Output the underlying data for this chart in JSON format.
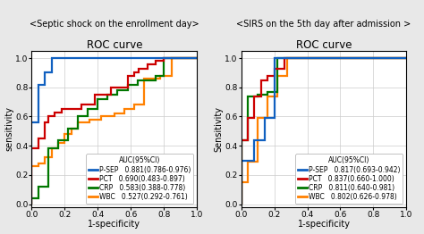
{
  "plot1": {
    "title_main": "<Septic shock on the enrollment day>",
    "title_sub": "ROC curve",
    "xlabel": "1-specificity",
    "ylabel": "sensitivity",
    "curves": {
      "P-SEP": {
        "color": "#1060C0",
        "auc": "0.881(0.786-0.976)",
        "x": [
          0.0,
          0.0,
          0.04,
          0.04,
          0.08,
          0.08,
          0.12,
          0.12,
          0.16,
          0.16,
          1.0
        ],
        "y": [
          0.0,
          0.56,
          0.56,
          0.82,
          0.82,
          0.9,
          0.9,
          1.0,
          1.0,
          1.0,
          1.0
        ]
      },
      "PCT": {
        "color": "#CC0000",
        "auc": "0.690(0.483-0.897)",
        "x": [
          0.0,
          0.0,
          0.04,
          0.04,
          0.08,
          0.08,
          0.1,
          0.1,
          0.14,
          0.14,
          0.18,
          0.18,
          0.3,
          0.3,
          0.38,
          0.38,
          0.48,
          0.48,
          0.58,
          0.58,
          0.62,
          0.62,
          0.65,
          0.65,
          0.7,
          0.7,
          0.75,
          0.75,
          0.8,
          0.8,
          1.0
        ],
        "y": [
          0.0,
          0.38,
          0.38,
          0.45,
          0.45,
          0.56,
          0.56,
          0.6,
          0.6,
          0.63,
          0.63,
          0.65,
          0.65,
          0.68,
          0.68,
          0.75,
          0.75,
          0.8,
          0.8,
          0.88,
          0.88,
          0.9,
          0.9,
          0.93,
          0.93,
          0.96,
          0.96,
          0.98,
          0.98,
          1.0,
          1.0
        ]
      },
      "CRP": {
        "color": "#007700",
        "auc": "0.583(0.388-0.778)",
        "x": [
          0.0,
          0.0,
          0.04,
          0.04,
          0.1,
          0.1,
          0.16,
          0.16,
          0.22,
          0.22,
          0.28,
          0.28,
          0.34,
          0.34,
          0.4,
          0.4,
          0.46,
          0.46,
          0.52,
          0.52,
          0.58,
          0.58,
          0.64,
          0.64,
          0.7,
          0.7,
          0.75,
          0.75,
          0.8,
          0.8,
          1.0
        ],
        "y": [
          0.0,
          0.04,
          0.04,
          0.12,
          0.12,
          0.38,
          0.38,
          0.44,
          0.44,
          0.52,
          0.52,
          0.6,
          0.6,
          0.65,
          0.65,
          0.72,
          0.72,
          0.75,
          0.75,
          0.78,
          0.78,
          0.82,
          0.82,
          0.85,
          0.85,
          0.85,
          0.85,
          0.88,
          0.88,
          1.0,
          1.0
        ]
      },
      "WBC": {
        "color": "#FF8000",
        "auc": "0.527(0.292-0.761)",
        "x": [
          0.0,
          0.0,
          0.04,
          0.04,
          0.08,
          0.08,
          0.12,
          0.12,
          0.16,
          0.16,
          0.2,
          0.2,
          0.24,
          0.24,
          0.28,
          0.28,
          0.35,
          0.35,
          0.42,
          0.42,
          0.5,
          0.5,
          0.56,
          0.56,
          0.62,
          0.62,
          0.68,
          0.68,
          0.78,
          0.78,
          0.85,
          0.85,
          1.0
        ],
        "y": [
          0.0,
          0.26,
          0.26,
          0.28,
          0.28,
          0.32,
          0.32,
          0.38,
          0.38,
          0.42,
          0.42,
          0.48,
          0.48,
          0.52,
          0.52,
          0.56,
          0.56,
          0.58,
          0.58,
          0.6,
          0.6,
          0.62,
          0.62,
          0.65,
          0.65,
          0.68,
          0.68,
          0.86,
          0.86,
          0.88,
          0.88,
          1.0,
          1.0
        ]
      }
    }
  },
  "plot2": {
    "title_main": "<SIRS on the 5th day after admission >",
    "title_sub": "ROC curve",
    "xlabel": "1-specificity",
    "ylabel": "Sensitivity",
    "curves": {
      "P-SEP": {
        "color": "#1060C0",
        "auc": "0.817(0.693-0.942)",
        "x": [
          0.0,
          0.0,
          0.08,
          0.08,
          0.14,
          0.14,
          0.2,
          0.2,
          0.25,
          0.25,
          0.5,
          0.5,
          1.0
        ],
        "y": [
          0.0,
          0.3,
          0.3,
          0.44,
          0.44,
          0.59,
          0.59,
          1.0,
          1.0,
          1.0,
          1.0,
          1.0,
          1.0
        ]
      },
      "PCT": {
        "color": "#CC0000",
        "auc": "0.837(0.660-1.000)",
        "x": [
          0.0,
          0.0,
          0.04,
          0.04,
          0.08,
          0.08,
          0.12,
          0.12,
          0.16,
          0.16,
          0.2,
          0.2,
          0.26,
          0.26,
          1.0
        ],
        "y": [
          0.0,
          0.44,
          0.44,
          0.59,
          0.59,
          0.74,
          0.74,
          0.85,
          0.85,
          0.88,
          0.88,
          0.93,
          0.93,
          1.0,
          1.0
        ]
      },
      "CRP": {
        "color": "#007700",
        "auc": "0.811(0.640-0.981)",
        "x": [
          0.0,
          0.0,
          0.04,
          0.04,
          0.1,
          0.1,
          0.16,
          0.16,
          0.22,
          0.22,
          0.4,
          0.4,
          0.5,
          0.5,
          0.65,
          0.65,
          1.0
        ],
        "y": [
          0.0,
          0.44,
          0.44,
          0.74,
          0.74,
          0.75,
          0.75,
          0.77,
          0.77,
          1.0,
          1.0,
          1.0,
          1.0,
          1.0,
          1.0,
          1.0,
          1.0
        ]
      },
      "WBC": {
        "color": "#FF8000",
        "auc": "0.802(0.626-0.978)",
        "x": [
          0.0,
          0.0,
          0.04,
          0.04,
          0.1,
          0.1,
          0.16,
          0.16,
          0.22,
          0.22,
          0.28,
          0.28,
          0.5,
          0.5,
          0.65,
          0.65,
          1.0
        ],
        "y": [
          0.0,
          0.15,
          0.15,
          0.29,
          0.29,
          0.59,
          0.59,
          0.74,
          0.74,
          0.88,
          0.88,
          1.0,
          1.0,
          1.0,
          1.0,
          1.0,
          1.0
        ]
      }
    }
  },
  "bg_color": "#FFFFFF",
  "fig_bg_color": "#E8E8E8",
  "line_width": 1.6,
  "grid_color": "#CCCCCC",
  "title_main_fontsize": 7.0,
  "title_sub_fontsize": 8.5,
  "axis_label_fontsize": 7.0,
  "tick_fontsize": 6.5,
  "legend_fontsize": 5.5,
  "curve_order": [
    "WBC",
    "CRP",
    "PCT",
    "P-SEP"
  ],
  "legend_order": [
    "P-SEP",
    "PCT",
    "CRP",
    "WBC"
  ]
}
